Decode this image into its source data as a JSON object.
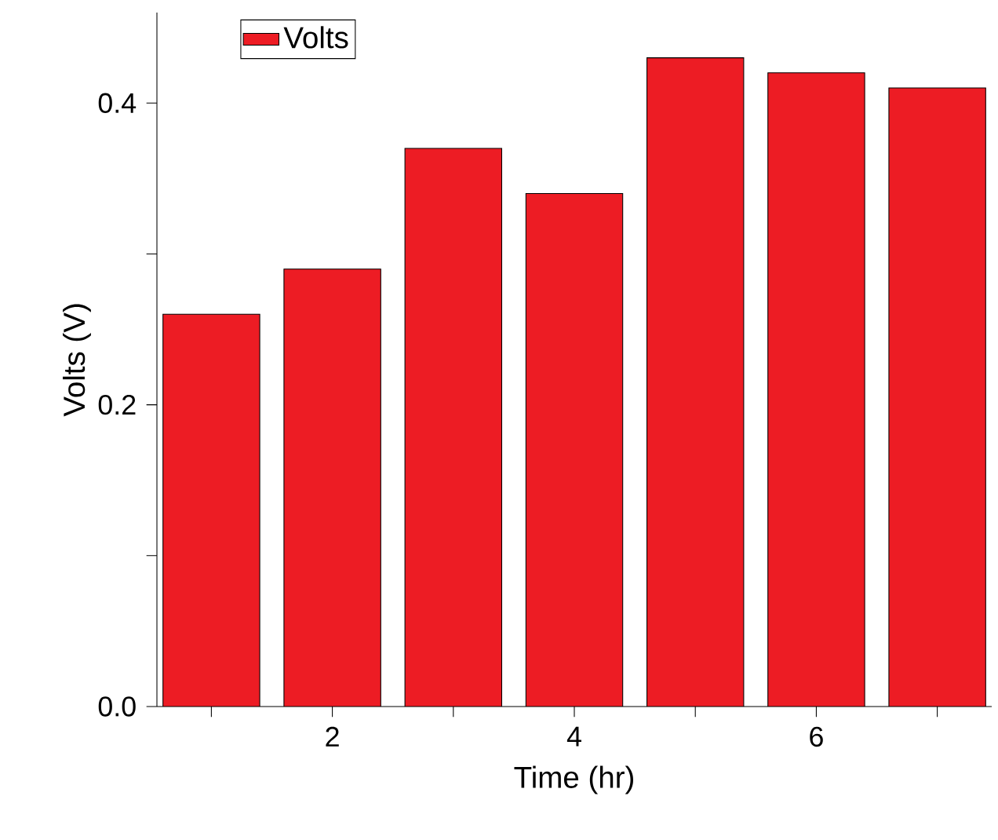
{
  "chart_data": {
    "type": "bar",
    "xlabel": "Time (hr)",
    "ylabel": "Volts (V)",
    "x": [
      1,
      2,
      3,
      4,
      5,
      6,
      7
    ],
    "series": [
      {
        "name": "Volts",
        "color": "#ed1c24",
        "values": [
          0.26,
          0.29,
          0.37,
          0.34,
          0.43,
          0.42,
          0.41
        ]
      }
    ],
    "xlim": [
      0.55,
      7.45
    ],
    "ylim": [
      0,
      0.46
    ],
    "xticks": [
      {
        "value": 1,
        "label": null
      },
      2,
      {
        "value": 3,
        "label": null
      },
      4,
      {
        "value": 5,
        "label": null
      },
      6,
      {
        "value": 7,
        "label": null
      }
    ],
    "yticks": [
      {
        "value": 0,
        "label": "0.0"
      },
      {
        "value": 0.1,
        "label": null
      },
      0.2,
      {
        "value": 0.3,
        "label": null
      },
      0.4
    ],
    "legend": "top left"
  }
}
